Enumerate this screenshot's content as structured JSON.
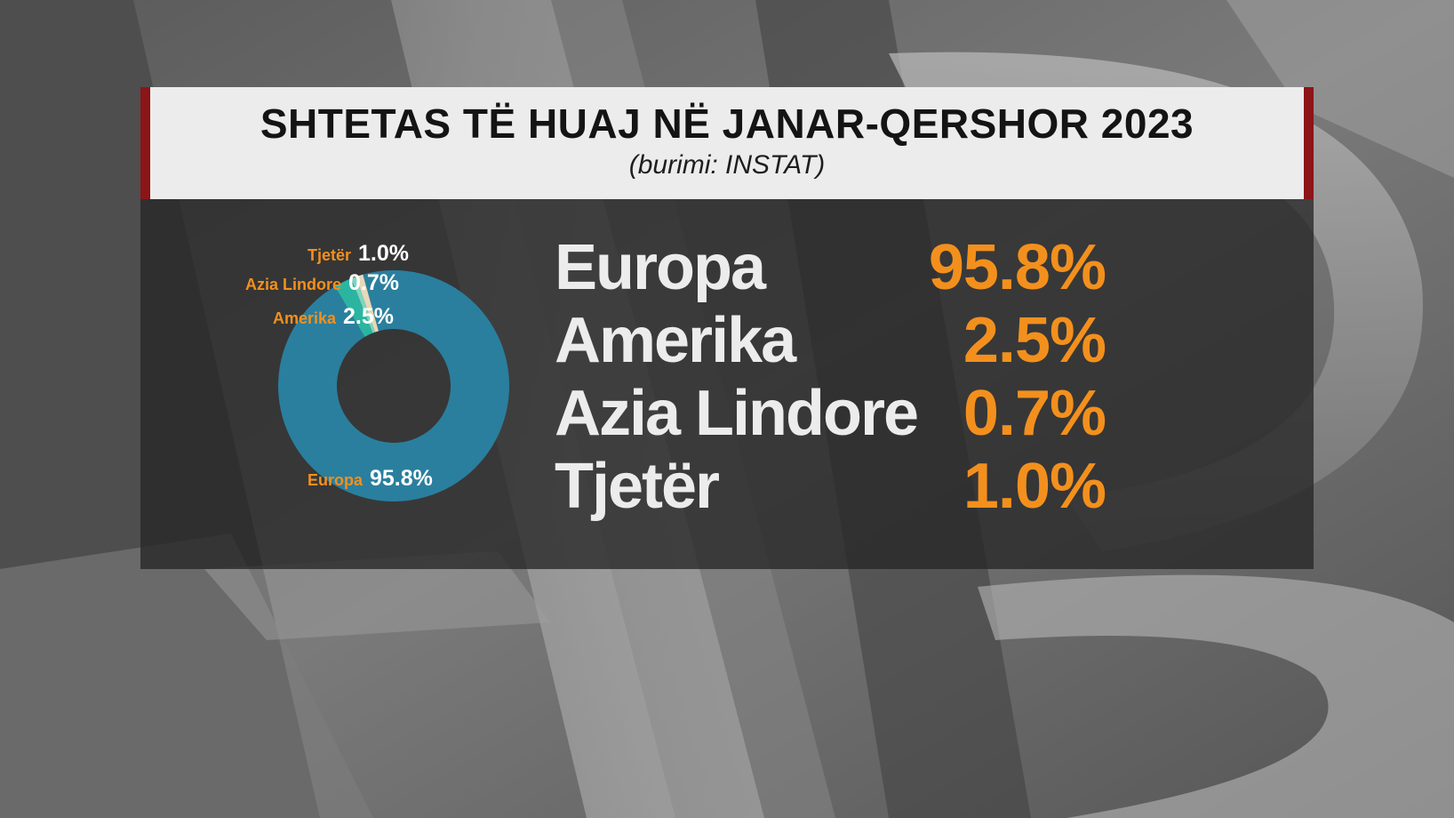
{
  "title": "SHTETAS TË HUAJ NË JANAR-QERSHOR 2023",
  "subtitle": "(burimi: INSTAT)",
  "colors": {
    "accent_bar": "#8c1518",
    "value_orange": "#f3901d",
    "label_orange": "#f3901d",
    "europa_slice": "#2a7f9e",
    "amerika_slice": "#2bb5a0",
    "azia_slice": "#7fd4c1",
    "tjeter_slice": "#e6d9b8"
  },
  "chart_data": {
    "type": "pie",
    "variant": "donut",
    "series": [
      {
        "name": "Europa",
        "value": 95.8,
        "label": "95.8%"
      },
      {
        "name": "Amerika",
        "value": 2.5,
        "label": "2.5%"
      },
      {
        "name": "Azia Lindore",
        "value": 0.7,
        "label": "0.7%"
      },
      {
        "name": "Tjetër",
        "value": 1.0,
        "label": "1.0%"
      }
    ]
  }
}
